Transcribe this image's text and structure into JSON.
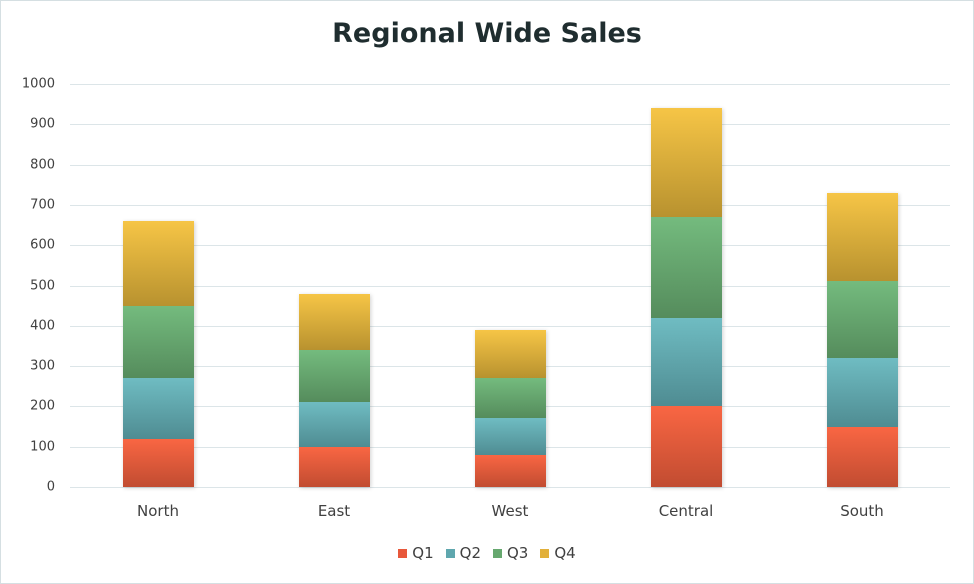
{
  "chart_data": {
    "type": "bar",
    "stacked": true,
    "title": "Regional Wide Sales",
    "xlabel": "",
    "ylabel": "",
    "ylim": [
      0,
      1000
    ],
    "yticks": [
      0,
      100,
      200,
      300,
      400,
      500,
      600,
      700,
      800,
      900,
      1000
    ],
    "grid": true,
    "legend_position": "bottom",
    "categories": [
      "North",
      "East",
      "West",
      "Central",
      "South"
    ],
    "series": [
      {
        "name": "Q1",
        "color": "#e8583b",
        "values": [
          120,
          100,
          80,
          200,
          150
        ]
      },
      {
        "name": "Q2",
        "color": "#5fa7ae",
        "values": [
          150,
          110,
          90,
          220,
          170
        ]
      },
      {
        "name": "Q3",
        "color": "#66a86f",
        "values": [
          180,
          130,
          100,
          250,
          190
        ]
      },
      {
        "name": "Q4",
        "color": "#e2b03a",
        "values": [
          210,
          140,
          120,
          270,
          220
        ]
      }
    ]
  }
}
